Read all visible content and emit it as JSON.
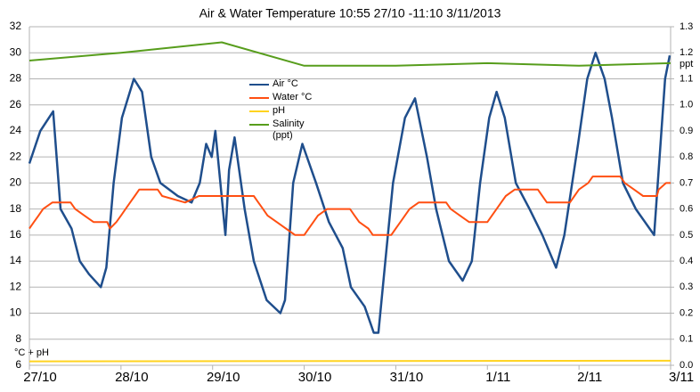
{
  "chart_data": {
    "type": "line",
    "title": "Air & Water Temperature 10:55 27/10 -11:10 3/11/2013",
    "ylabel": "°C + pH",
    "y2label": "ppt",
    "xlim": [
      0,
      7
    ],
    "xticks": [
      {
        "value": 0,
        "label": "27/10"
      },
      {
        "value": 1,
        "label": "28/10"
      },
      {
        "value": 2,
        "label": "29/10"
      },
      {
        "value": 3,
        "label": "30/10"
      },
      {
        "value": 4,
        "label": "31/10"
      },
      {
        "value": 5,
        "label": "1/11"
      },
      {
        "value": 6,
        "label": "2/11"
      },
      {
        "value": 7,
        "label": "3/11"
      }
    ],
    "ylim": [
      6,
      32
    ],
    "yticks": [
      6,
      8,
      10,
      12,
      14,
      16,
      18,
      20,
      22,
      24,
      26,
      28,
      30,
      32
    ],
    "y2lim": [
      0,
      1.3
    ],
    "y2ticks": [
      {
        "value": 0,
        "label": "0.0"
      },
      0.1,
      0.2,
      0.3,
      0.4,
      0.5,
      0.6,
      0.7,
      0.8,
      0.9,
      {
        "value": 1,
        "label": "1.0"
      },
      1.1,
      1.2,
      1.3
    ],
    "grid": true,
    "series": [
      {
        "name": "Air °C",
        "color": "#1f4e8c",
        "x": [
          0,
          0.12,
          0.26,
          0.34,
          0.46,
          0.55,
          0.65,
          0.78,
          0.84,
          0.92,
          1.01,
          1.14,
          1.23,
          1.33,
          1.43,
          1.62,
          1.77,
          1.86,
          1.93,
          1.99,
          2.03,
          2.14,
          2.18,
          2.24,
          2.35,
          2.45,
          2.59,
          2.74,
          2.79,
          2.88,
          2.98,
          3.13,
          3.27,
          3.42,
          3.51,
          3.66,
          3.76,
          3.81,
          3.9,
          3.97,
          4.1,
          4.21,
          4.34,
          4.44,
          4.58,
          4.73,
          4.83,
          4.92,
          5.02,
          5.1,
          5.19,
          5.31,
          5.46,
          5.6,
          5.75,
          5.84,
          5.99,
          6.09,
          6.18,
          6.28,
          6.36,
          6.48,
          6.62,
          6.72,
          6.82,
          6.86,
          6.94,
          6.99
        ],
        "values": [
          21.5,
          24,
          25.5,
          18,
          16.5,
          14,
          13,
          12,
          13.5,
          20,
          25,
          28,
          27,
          22,
          20,
          19,
          18.5,
          20,
          23,
          22,
          24,
          16,
          21,
          23.5,
          18,
          14,
          11,
          10,
          11,
          20,
          23,
          20,
          17,
          15,
          12,
          10.5,
          8.5,
          8.5,
          15,
          20,
          25,
          26.5,
          22,
          18,
          14,
          12.5,
          14,
          20,
          25,
          27,
          25,
          20,
          18,
          16,
          13.5,
          16,
          23,
          28,
          30,
          28,
          25,
          20,
          18,
          17,
          16,
          20,
          28,
          29.8
        ]
      },
      {
        "name": "Water °C",
        "color": "#ff4f12",
        "x": [
          0,
          0.05,
          0.1,
          0.15,
          0.25,
          0.45,
          0.5,
          0.6,
          0.7,
          0.85,
          0.88,
          0.95,
          1.0,
          1.05,
          1.1,
          1.15,
          1.2,
          1.4,
          1.45,
          1.7,
          1.85,
          2.45,
          2.5,
          2.55,
          2.6,
          2.7,
          2.8,
          2.9,
          3.0,
          3.05,
          3.1,
          3.15,
          3.25,
          3.5,
          3.55,
          3.6,
          3.7,
          3.75,
          3.95,
          4.0,
          4.05,
          4.1,
          4.15,
          4.25,
          4.55,
          4.6,
          4.7,
          4.8,
          5.0,
          5.05,
          5.1,
          5.15,
          5.2,
          5.3,
          5.55,
          5.6,
          5.65,
          5.9,
          5.95,
          6.0,
          6.1,
          6.15,
          6.45,
          6.5,
          6.6,
          6.7,
          6.85,
          6.87,
          6.95,
          7
        ],
        "values": [
          16.5,
          17,
          17.5,
          18,
          18.5,
          18.5,
          18,
          17.5,
          17,
          17,
          16.5,
          17,
          17.5,
          18,
          18.5,
          19,
          19.5,
          19.5,
          19,
          18.5,
          19,
          19,
          18.5,
          18,
          17.5,
          17,
          16.5,
          16,
          16,
          16.5,
          17,
          17.5,
          18,
          18,
          17.5,
          17,
          16.5,
          16,
          16,
          16.5,
          17,
          17.5,
          18,
          18.5,
          18.5,
          18,
          17.5,
          17,
          17,
          17.5,
          18,
          18.5,
          19,
          19.5,
          19.5,
          19,
          18.5,
          18.5,
          19,
          19.5,
          20,
          20.5,
          20.5,
          20,
          19.5,
          19,
          19,
          19.5,
          20,
          20
        ]
      },
      {
        "name": "pH",
        "color": "#ffd320",
        "x": [
          0,
          3.5,
          7
        ],
        "values": [
          6.3,
          6.32,
          6.35
        ]
      },
      {
        "name": "Salinity (ppt)",
        "color": "#579d1c",
        "axis": "y2",
        "x": [
          0,
          1,
          2.1,
          3,
          4,
          5,
          6,
          7
        ],
        "values": [
          1.17,
          1.2,
          1.24,
          1.15,
          1.15,
          1.16,
          1.15,
          1.16
        ]
      }
    ]
  }
}
